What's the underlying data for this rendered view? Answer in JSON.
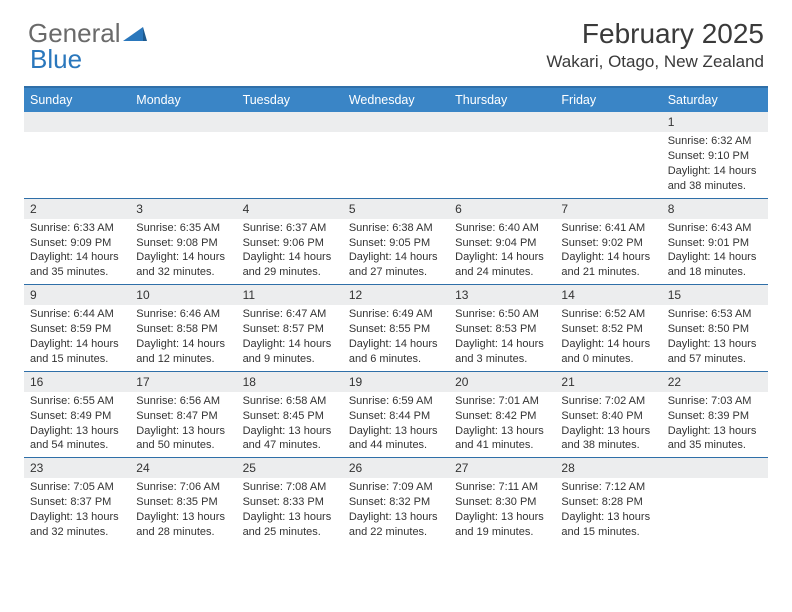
{
  "brand": {
    "part1": "General",
    "part2": "Blue"
  },
  "title": "February 2025",
  "location": "Wakari, Otago, New Zealand",
  "colors": {
    "header_bg": "#3a85c6",
    "border": "#2f6fa8",
    "daynum_bg": "#ecedee",
    "text": "#333333",
    "brand_gray": "#6a6a6a",
    "brand_blue": "#2a77bc",
    "background": "#ffffff"
  },
  "typography": {
    "title_fontsize": 28,
    "location_fontsize": 17,
    "dayheader_fontsize": 12.5,
    "cell_fontsize": 11
  },
  "day_headers": [
    "Sunday",
    "Monday",
    "Tuesday",
    "Wednesday",
    "Thursday",
    "Friday",
    "Saturday"
  ],
  "weeks": [
    [
      {
        "n": "",
        "sr": "",
        "ss": "",
        "dl": ""
      },
      {
        "n": "",
        "sr": "",
        "ss": "",
        "dl": ""
      },
      {
        "n": "",
        "sr": "",
        "ss": "",
        "dl": ""
      },
      {
        "n": "",
        "sr": "",
        "ss": "",
        "dl": ""
      },
      {
        "n": "",
        "sr": "",
        "ss": "",
        "dl": ""
      },
      {
        "n": "",
        "sr": "",
        "ss": "",
        "dl": ""
      },
      {
        "n": "1",
        "sr": "Sunrise: 6:32 AM",
        "ss": "Sunset: 9:10 PM",
        "dl": "Daylight: 14 hours and 38 minutes."
      }
    ],
    [
      {
        "n": "2",
        "sr": "Sunrise: 6:33 AM",
        "ss": "Sunset: 9:09 PM",
        "dl": "Daylight: 14 hours and 35 minutes."
      },
      {
        "n": "3",
        "sr": "Sunrise: 6:35 AM",
        "ss": "Sunset: 9:08 PM",
        "dl": "Daylight: 14 hours and 32 minutes."
      },
      {
        "n": "4",
        "sr": "Sunrise: 6:37 AM",
        "ss": "Sunset: 9:06 PM",
        "dl": "Daylight: 14 hours and 29 minutes."
      },
      {
        "n": "5",
        "sr": "Sunrise: 6:38 AM",
        "ss": "Sunset: 9:05 PM",
        "dl": "Daylight: 14 hours and 27 minutes."
      },
      {
        "n": "6",
        "sr": "Sunrise: 6:40 AM",
        "ss": "Sunset: 9:04 PM",
        "dl": "Daylight: 14 hours and 24 minutes."
      },
      {
        "n": "7",
        "sr": "Sunrise: 6:41 AM",
        "ss": "Sunset: 9:02 PM",
        "dl": "Daylight: 14 hours and 21 minutes."
      },
      {
        "n": "8",
        "sr": "Sunrise: 6:43 AM",
        "ss": "Sunset: 9:01 PM",
        "dl": "Daylight: 14 hours and 18 minutes."
      }
    ],
    [
      {
        "n": "9",
        "sr": "Sunrise: 6:44 AM",
        "ss": "Sunset: 8:59 PM",
        "dl": "Daylight: 14 hours and 15 minutes."
      },
      {
        "n": "10",
        "sr": "Sunrise: 6:46 AM",
        "ss": "Sunset: 8:58 PM",
        "dl": "Daylight: 14 hours and 12 minutes."
      },
      {
        "n": "11",
        "sr": "Sunrise: 6:47 AM",
        "ss": "Sunset: 8:57 PM",
        "dl": "Daylight: 14 hours and 9 minutes."
      },
      {
        "n": "12",
        "sr": "Sunrise: 6:49 AM",
        "ss": "Sunset: 8:55 PM",
        "dl": "Daylight: 14 hours and 6 minutes."
      },
      {
        "n": "13",
        "sr": "Sunrise: 6:50 AM",
        "ss": "Sunset: 8:53 PM",
        "dl": "Daylight: 14 hours and 3 minutes."
      },
      {
        "n": "14",
        "sr": "Sunrise: 6:52 AM",
        "ss": "Sunset: 8:52 PM",
        "dl": "Daylight: 14 hours and 0 minutes."
      },
      {
        "n": "15",
        "sr": "Sunrise: 6:53 AM",
        "ss": "Sunset: 8:50 PM",
        "dl": "Daylight: 13 hours and 57 minutes."
      }
    ],
    [
      {
        "n": "16",
        "sr": "Sunrise: 6:55 AM",
        "ss": "Sunset: 8:49 PM",
        "dl": "Daylight: 13 hours and 54 minutes."
      },
      {
        "n": "17",
        "sr": "Sunrise: 6:56 AM",
        "ss": "Sunset: 8:47 PM",
        "dl": "Daylight: 13 hours and 50 minutes."
      },
      {
        "n": "18",
        "sr": "Sunrise: 6:58 AM",
        "ss": "Sunset: 8:45 PM",
        "dl": "Daylight: 13 hours and 47 minutes."
      },
      {
        "n": "19",
        "sr": "Sunrise: 6:59 AM",
        "ss": "Sunset: 8:44 PM",
        "dl": "Daylight: 13 hours and 44 minutes."
      },
      {
        "n": "20",
        "sr": "Sunrise: 7:01 AM",
        "ss": "Sunset: 8:42 PM",
        "dl": "Daylight: 13 hours and 41 minutes."
      },
      {
        "n": "21",
        "sr": "Sunrise: 7:02 AM",
        "ss": "Sunset: 8:40 PM",
        "dl": "Daylight: 13 hours and 38 minutes."
      },
      {
        "n": "22",
        "sr": "Sunrise: 7:03 AM",
        "ss": "Sunset: 8:39 PM",
        "dl": "Daylight: 13 hours and 35 minutes."
      }
    ],
    [
      {
        "n": "23",
        "sr": "Sunrise: 7:05 AM",
        "ss": "Sunset: 8:37 PM",
        "dl": "Daylight: 13 hours and 32 minutes."
      },
      {
        "n": "24",
        "sr": "Sunrise: 7:06 AM",
        "ss": "Sunset: 8:35 PM",
        "dl": "Daylight: 13 hours and 28 minutes."
      },
      {
        "n": "25",
        "sr": "Sunrise: 7:08 AM",
        "ss": "Sunset: 8:33 PM",
        "dl": "Daylight: 13 hours and 25 minutes."
      },
      {
        "n": "26",
        "sr": "Sunrise: 7:09 AM",
        "ss": "Sunset: 8:32 PM",
        "dl": "Daylight: 13 hours and 22 minutes."
      },
      {
        "n": "27",
        "sr": "Sunrise: 7:11 AM",
        "ss": "Sunset: 8:30 PM",
        "dl": "Daylight: 13 hours and 19 minutes."
      },
      {
        "n": "28",
        "sr": "Sunrise: 7:12 AM",
        "ss": "Sunset: 8:28 PM",
        "dl": "Daylight: 13 hours and 15 minutes."
      },
      {
        "n": "",
        "sr": "",
        "ss": "",
        "dl": ""
      }
    ]
  ]
}
